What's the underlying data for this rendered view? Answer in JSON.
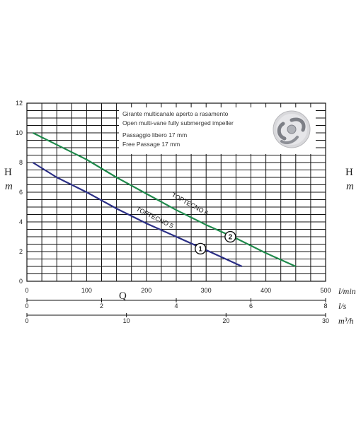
{
  "chart_data": {
    "type": "line",
    "x_units": "l/min",
    "xlim": [
      0,
      500
    ],
    "ylim": [
      0,
      12
    ],
    "x_ticks": [
      "0",
      "100",
      "200",
      "300",
      "400",
      "500"
    ],
    "y_ticks": [
      "0",
      "2",
      "4",
      "6",
      "8",
      "10",
      "12"
    ],
    "secondary_axes": [
      {
        "label": "l/s",
        "max": 8,
        "ticks": [
          "0",
          "2",
          "4",
          "6",
          "8"
        ]
      },
      {
        "label": "m³/h",
        "max": 30,
        "ticks": [
          "0",
          "10",
          "20",
          "30"
        ]
      }
    ],
    "y_label_top": "H",
    "y_label_bottom": "m",
    "x_label": "Q",
    "series": [
      {
        "name": "TOPTECNO 5",
        "badge": "1",
        "color": "#2b2f86",
        "x": [
          10,
          50,
          100,
          150,
          200,
          250,
          300,
          360
        ],
        "y": [
          8.0,
          7.0,
          6.0,
          4.9,
          3.9,
          3.0,
          2.1,
          1.0
        ]
      },
      {
        "name": "TOPTECNO 6",
        "badge": "2",
        "color": "#1f8a4c",
        "x": [
          10,
          50,
          100,
          150,
          200,
          250,
          300,
          350,
          400,
          450
        ],
        "y": [
          10.0,
          9.2,
          8.2,
          7.0,
          5.9,
          4.8,
          3.8,
          2.9,
          1.9,
          1.0
        ]
      }
    ],
    "grid": true
  },
  "info": {
    "line1": "Girante multicanale aperto a rasamento",
    "line2": "Open multi-vane fully submerged impeller",
    "line3": "Passaggio libero 17 mm",
    "line4": "Free Passage 17 mm"
  }
}
